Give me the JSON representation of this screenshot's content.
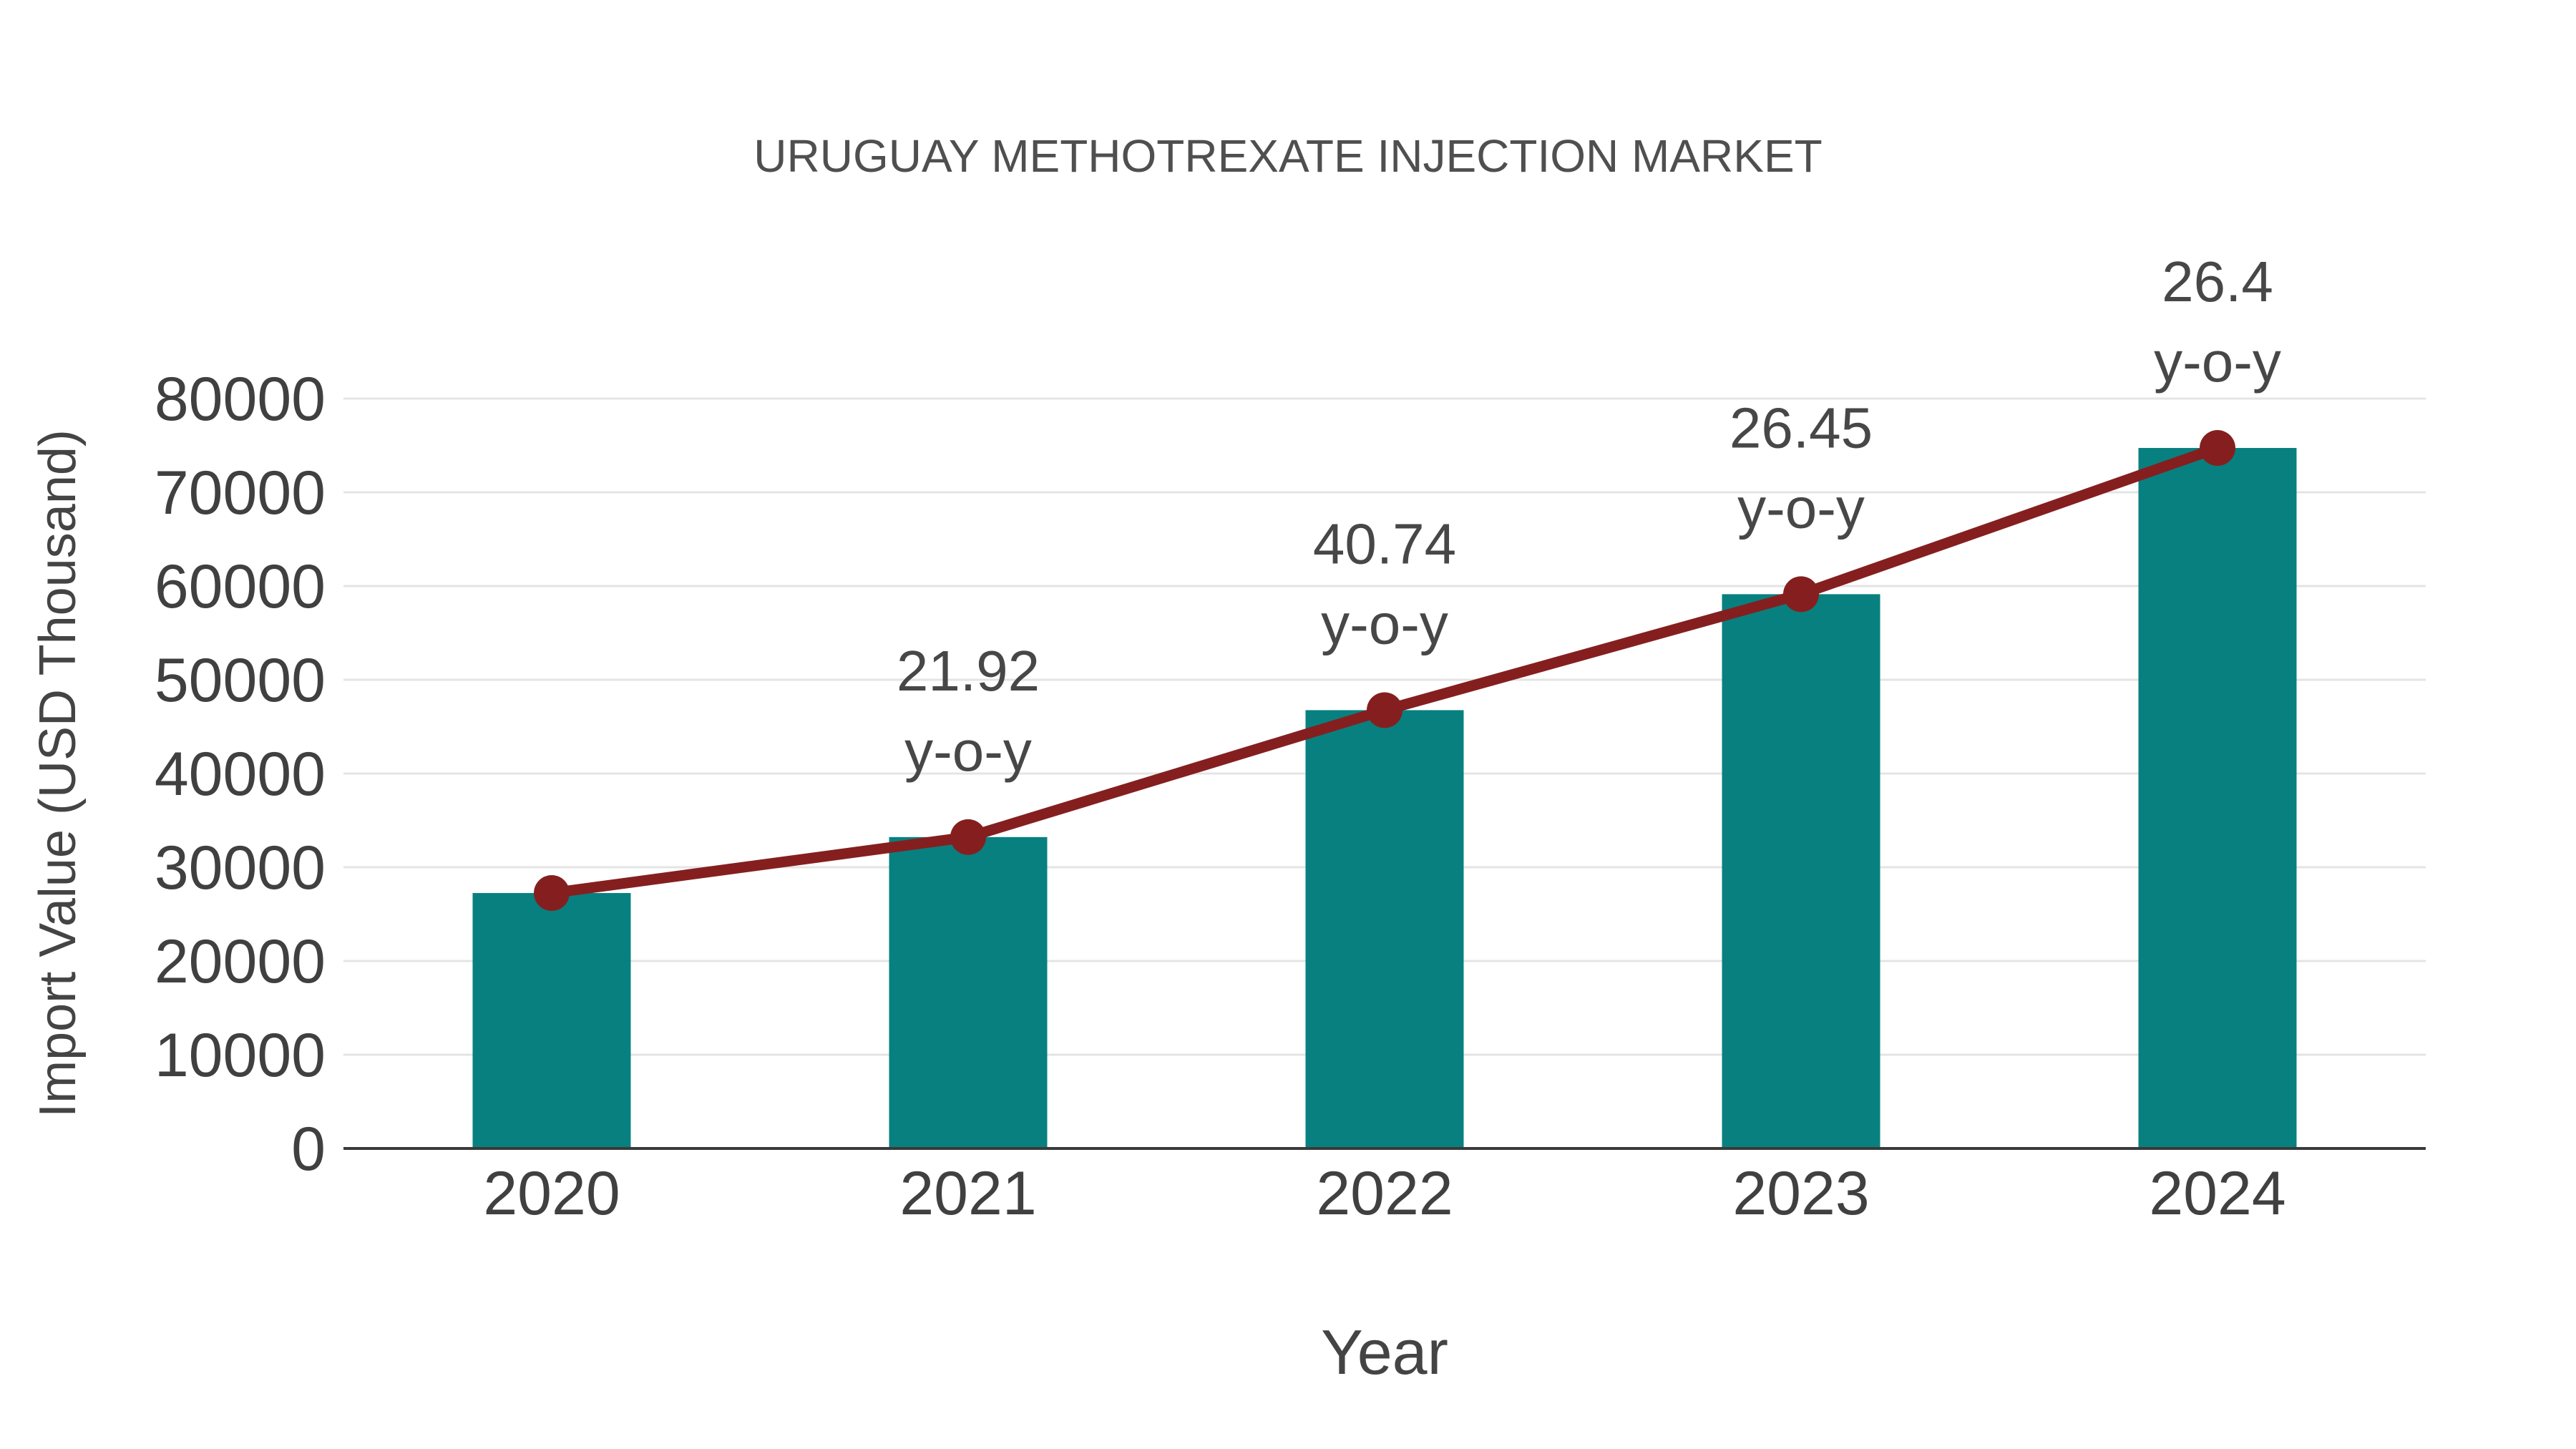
{
  "title": "URUGUAY METHOTREXATE INJECTION MARKET",
  "chart_data": {
    "type": "bar",
    "title": "URUGUAY METHOTREXATE INJECTION MARKET",
    "xlabel": "Year",
    "ylabel": "Import Value (USD Thousand)",
    "categories": [
      "2020",
      "2021",
      "2022",
      "2023",
      "2024"
    ],
    "series": [
      {
        "name": "import-value-bars",
        "type": "bar",
        "values": [
          27250,
          33220,
          46760,
          59130,
          74730
        ],
        "color": "#088080"
      },
      {
        "name": "yoy-trend-line",
        "type": "line",
        "values": [
          27250,
          33220,
          46760,
          59130,
          74730
        ],
        "color": "#851f1f"
      }
    ],
    "annotations": [
      {
        "category": "2021",
        "value_label": "21.92",
        "suffix_label": "y-o-y"
      },
      {
        "category": "2022",
        "value_label": "40.74",
        "suffix_label": "y-o-y"
      },
      {
        "category": "2023",
        "value_label": "26.45",
        "suffix_label": "y-o-y"
      },
      {
        "category": "2024",
        "value_label": "26.4",
        "suffix_label": "y-o-y"
      }
    ],
    "yticks": [
      0,
      10000,
      20000,
      30000,
      40000,
      50000,
      60000,
      70000,
      80000
    ],
    "ylim": [
      0,
      80000
    ],
    "grid": true,
    "legend_position": "none",
    "colors": {
      "bar": "#088080",
      "line": "#851f1f",
      "marker": "#851f1f",
      "gridline": "#e4e4e4",
      "axis_line": "#3a3a3a",
      "text": "#444444",
      "background": "#ffffff"
    }
  }
}
